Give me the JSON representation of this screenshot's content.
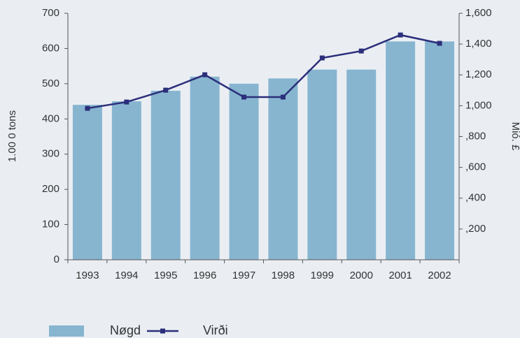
{
  "chart_data": {
    "type": "bar_line",
    "categories": [
      "1993",
      "1994",
      "1995",
      "1996",
      "1997",
      "1998",
      "1999",
      "2000",
      "2001",
      "2002"
    ],
    "series": [
      {
        "name": "Nøgd",
        "color": "#87b5d0",
        "values": [
          440,
          450,
          480,
          520,
          500,
          515,
          540,
          540,
          620,
          620
        ]
      },
      {
        "name": "Virði",
        "color": "#2b2e7a",
        "axis": "y2",
        "values": [
          983,
          1024,
          1101,
          1201,
          1056,
          1056,
          1310,
          1355,
          1459,
          1405
        ]
      }
    ],
    "ylabel": "1.00 0 tons",
    "y2label": "Mió. £",
    "ylim": [
      0,
      700
    ],
    "yticks": [
      0,
      100,
      200,
      300,
      400,
      500,
      600,
      700
    ],
    "y2lim": [
      0,
      1600
    ],
    "y2ticks": [
      {
        "value": 200,
        "label": ",200"
      },
      {
        "value": 400,
        "label": ",400"
      },
      {
        "value": 600,
        "label": ",600"
      },
      {
        "value": 800,
        "label": ",800"
      },
      {
        "value": 1000,
        "label": "1,000"
      },
      {
        "value": 1200,
        "label": "1,200"
      },
      {
        "value": 1400,
        "label": "1,400"
      },
      {
        "value": 1600,
        "label": "1,600"
      }
    ],
    "legend": "bottom"
  }
}
